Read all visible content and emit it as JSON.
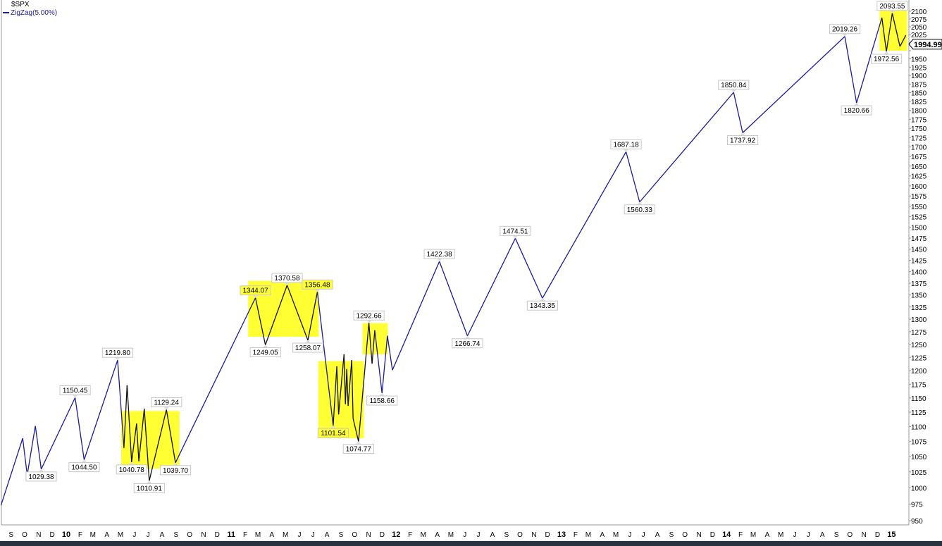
{
  "legend": {
    "symbol": "$SPX",
    "indicator": "ZigZag(5.00%)"
  },
  "colors": {
    "line": "#1a1a9e",
    "line_in_box": "#111111",
    "highlight": "#ffff33",
    "label_border": "#c8c8c8"
  },
  "last_price": "1994.99",
  "chart_data": {
    "type": "line",
    "title": "",
    "y_scale": "log",
    "ylim": [
      950,
      2100
    ],
    "xlim": [
      "2009-08-01",
      "2015-02-05"
    ],
    "grid": false,
    "y_axis_side": "right",
    "y_ticks": [
      950,
      975,
      1000,
      1025,
      1050,
      1075,
      1100,
      1125,
      1150,
      1175,
      1200,
      1225,
      1250,
      1275,
      1300,
      1325,
      1350,
      1375,
      1400,
      1425,
      1450,
      1475,
      1500,
      1525,
      1550,
      1575,
      1600,
      1625,
      1650,
      1675,
      1700,
      1725,
      1750,
      1775,
      1800,
      1825,
      1850,
      1875,
      1900,
      1925,
      1950,
      1975,
      2000,
      2025,
      2050,
      2075,
      2100
    ],
    "x_ticks": [
      {
        "date": "2009-09-01",
        "label": "S"
      },
      {
        "date": "2009-10-01",
        "label": "O"
      },
      {
        "date": "2009-11-01",
        "label": "N"
      },
      {
        "date": "2009-12-01",
        "label": "D"
      },
      {
        "date": "2010-01-01",
        "label": "10",
        "bold": true
      },
      {
        "date": "2010-02-01",
        "label": "F"
      },
      {
        "date": "2010-03-01",
        "label": "M"
      },
      {
        "date": "2010-04-01",
        "label": "A"
      },
      {
        "date": "2010-05-01",
        "label": "M"
      },
      {
        "date": "2010-06-01",
        "label": "J"
      },
      {
        "date": "2010-07-01",
        "label": "J"
      },
      {
        "date": "2010-08-01",
        "label": "A"
      },
      {
        "date": "2010-09-01",
        "label": "S"
      },
      {
        "date": "2010-10-01",
        "label": "O"
      },
      {
        "date": "2010-11-01",
        "label": "N"
      },
      {
        "date": "2010-12-01",
        "label": "D"
      },
      {
        "date": "2011-01-01",
        "label": "11",
        "bold": true
      },
      {
        "date": "2011-02-01",
        "label": "F"
      },
      {
        "date": "2011-03-01",
        "label": "M"
      },
      {
        "date": "2011-04-01",
        "label": "A"
      },
      {
        "date": "2011-05-01",
        "label": "M"
      },
      {
        "date": "2011-06-01",
        "label": "J"
      },
      {
        "date": "2011-07-01",
        "label": "J"
      },
      {
        "date": "2011-08-01",
        "label": "A"
      },
      {
        "date": "2011-09-01",
        "label": "S"
      },
      {
        "date": "2011-10-01",
        "label": "O"
      },
      {
        "date": "2011-11-01",
        "label": "N"
      },
      {
        "date": "2011-12-01",
        "label": "D"
      },
      {
        "date": "2012-01-01",
        "label": "12",
        "bold": true
      },
      {
        "date": "2012-02-01",
        "label": "F"
      },
      {
        "date": "2012-03-01",
        "label": "M"
      },
      {
        "date": "2012-04-01",
        "label": "A"
      },
      {
        "date": "2012-05-01",
        "label": "M"
      },
      {
        "date": "2012-06-01",
        "label": "J"
      },
      {
        "date": "2012-07-01",
        "label": "J"
      },
      {
        "date": "2012-08-01",
        "label": "A"
      },
      {
        "date": "2012-09-01",
        "label": "S"
      },
      {
        "date": "2012-10-01",
        "label": "O"
      },
      {
        "date": "2012-11-01",
        "label": "N"
      },
      {
        "date": "2012-12-01",
        "label": "D"
      },
      {
        "date": "2013-01-01",
        "label": "13",
        "bold": true
      },
      {
        "date": "2013-02-01",
        "label": "F"
      },
      {
        "date": "2013-03-01",
        "label": "M"
      },
      {
        "date": "2013-04-01",
        "label": "A"
      },
      {
        "date": "2013-05-01",
        "label": "M"
      },
      {
        "date": "2013-06-01",
        "label": "J"
      },
      {
        "date": "2013-07-01",
        "label": "J"
      },
      {
        "date": "2013-08-01",
        "label": "A"
      },
      {
        "date": "2013-09-01",
        "label": "S"
      },
      {
        "date": "2013-10-01",
        "label": "O"
      },
      {
        "date": "2013-11-01",
        "label": "N"
      },
      {
        "date": "2013-12-01",
        "label": "D"
      },
      {
        "date": "2014-01-01",
        "label": "14",
        "bold": true
      },
      {
        "date": "2014-02-01",
        "label": "F"
      },
      {
        "date": "2014-03-01",
        "label": "M"
      },
      {
        "date": "2014-04-01",
        "label": "A"
      },
      {
        "date": "2014-05-01",
        "label": "M"
      },
      {
        "date": "2014-06-01",
        "label": "J"
      },
      {
        "date": "2014-07-01",
        "label": "J"
      },
      {
        "date": "2014-08-01",
        "label": "A"
      },
      {
        "date": "2014-09-01",
        "label": "S"
      },
      {
        "date": "2014-10-01",
        "label": "O"
      },
      {
        "date": "2014-11-01",
        "label": "N"
      },
      {
        "date": "2014-12-01",
        "label": "D"
      },
      {
        "date": "2015-01-01",
        "label": "15",
        "bold": true
      }
    ],
    "points": [
      {
        "date": "2009-08-05",
        "value": 973
      },
      {
        "date": "2009-09-22",
        "value": 1080
      },
      {
        "date": "2009-10-02",
        "value": 1020
      },
      {
        "date": "2009-10-20",
        "value": 1101
      },
      {
        "date": "2009-11-02",
        "value": 1029.38,
        "label": "1029.38",
        "pos": "below"
      },
      {
        "date": "2010-01-16",
        "value": 1150.45,
        "label": "1150.45",
        "pos": "above"
      },
      {
        "date": "2010-02-05",
        "value": 1044.5,
        "label": "1044.50",
        "pos": "below"
      },
      {
        "date": "2010-04-20",
        "value": 1219.8,
        "label": "1219.80",
        "pos": "above"
      },
      {
        "date": "2010-05-04",
        "value": 1064
      },
      {
        "date": "2010-05-11",
        "value": 1173
      },
      {
        "date": "2010-05-21",
        "value": 1040.78,
        "label": "1040.78",
        "pos": "below"
      },
      {
        "date": "2010-06-01",
        "value": 1105
      },
      {
        "date": "2010-06-06",
        "value": 1042
      },
      {
        "date": "2010-06-18",
        "value": 1131
      },
      {
        "date": "2010-06-29",
        "value": 1010.91,
        "label": "1010.91",
        "pos": "below"
      },
      {
        "date": "2010-08-06",
        "value": 1129.24,
        "label": "1129.24",
        "pos": "above"
      },
      {
        "date": "2010-08-26",
        "value": 1039.7,
        "label": "1039.70",
        "pos": "below"
      },
      {
        "date": "2011-02-19",
        "value": 1344.07,
        "label": "1344.07",
        "pos": "above"
      },
      {
        "date": "2011-03-13",
        "value": 1249.05,
        "label": "1249.05",
        "pos": "below"
      },
      {
        "date": "2011-04-30",
        "value": 1370.58,
        "label": "1370.58",
        "pos": "above"
      },
      {
        "date": "2011-06-15",
        "value": 1258.07,
        "label": "1258.07",
        "pos": "below"
      },
      {
        "date": "2011-07-06",
        "value": 1356.48,
        "label": "1356.48",
        "pos": "above"
      },
      {
        "date": "2011-08-10",
        "value": 1101.54,
        "label": "1101.54",
        "pos": "below"
      },
      {
        "date": "2011-08-18",
        "value": 1208
      },
      {
        "date": "2011-08-22",
        "value": 1121
      },
      {
        "date": "2011-09-03",
        "value": 1231
      },
      {
        "date": "2011-09-06",
        "value": 1139
      },
      {
        "date": "2011-09-09",
        "value": 1203
      },
      {
        "date": "2011-09-12",
        "value": 1136
      },
      {
        "date": "2011-09-20",
        "value": 1220
      },
      {
        "date": "2011-09-23",
        "value": 1114
      },
      {
        "date": "2011-10-05",
        "value": 1074.77,
        "label": "1074.77",
        "pos": "below"
      },
      {
        "date": "2011-10-28",
        "value": 1292.66,
        "label": "1292.66",
        "pos": "above"
      },
      {
        "date": "2011-11-04",
        "value": 1213
      },
      {
        "date": "2011-11-10",
        "value": 1278
      },
      {
        "date": "2011-11-26",
        "value": 1158.66,
        "label": "1158.66",
        "pos": "below"
      },
      {
        "date": "2011-12-08",
        "value": 1267
      },
      {
        "date": "2011-12-19",
        "value": 1201
      },
      {
        "date": "2012-04-01",
        "value": 1422.38,
        "label": "1422.38",
        "pos": "above"
      },
      {
        "date": "2012-06-02",
        "value": 1266.74,
        "label": "1266.74",
        "pos": "below"
      },
      {
        "date": "2012-09-16",
        "value": 1474.51,
        "label": "1474.51",
        "pos": "above"
      },
      {
        "date": "2012-11-15",
        "value": 1343.35,
        "label": "1343.35",
        "pos": "below"
      },
      {
        "date": "2013-05-19",
        "value": 1687.18,
        "label": "1687.18",
        "pos": "above"
      },
      {
        "date": "2013-06-18",
        "value": 1560.33,
        "label": "1560.33",
        "pos": "below"
      },
      {
        "date": "2014-01-12",
        "value": 1850.84,
        "label": "1850.84",
        "pos": "above"
      },
      {
        "date": "2014-02-01",
        "value": 1737.92,
        "label": "1737.92",
        "pos": "below"
      },
      {
        "date": "2014-09-15",
        "value": 2019.26,
        "label": "2019.26",
        "pos": "above"
      },
      {
        "date": "2014-10-11",
        "value": 1820.66,
        "label": "1820.66",
        "pos": "below"
      },
      {
        "date": "2014-12-06",
        "value": 2079
      },
      {
        "date": "2014-12-16",
        "value": 1972.56,
        "label": "1972.56",
        "pos": "below"
      },
      {
        "date": "2014-12-29",
        "value": 2093.55,
        "label": "2093.55",
        "pos": "above"
      },
      {
        "date": "2015-01-15",
        "value": 1988
      },
      {
        "date": "2015-01-28",
        "value": 2023
      }
    ],
    "highlight_boxes": [
      {
        "from": "2010-04-28",
        "to": "2010-09-04",
        "high": 1127,
        "low": 1030
      },
      {
        "from": "2011-02-03",
        "to": "2011-07-09",
        "high": 1380,
        "low": 1265
      },
      {
        "from": "2011-07-08",
        "to": "2011-10-17",
        "high": 1218,
        "low": 1080
      },
      {
        "from": "2011-10-14",
        "to": "2011-12-09",
        "high": 1292,
        "low": 1231
      },
      {
        "from": "2014-12-01",
        "to": "2015-01-31",
        "high": 2105,
        "low": 1975
      }
    ]
  }
}
